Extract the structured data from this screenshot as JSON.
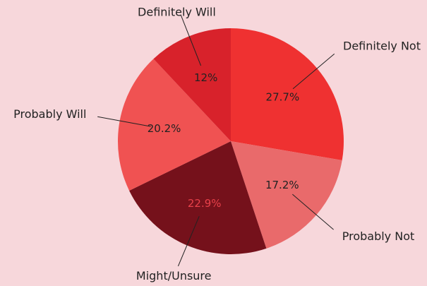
{
  "chart_data": {
    "type": "pie",
    "categories": [
      "Definitely Not",
      "Probably Not",
      "Might/Unsure",
      "Probably Will",
      "Definitely Will"
    ],
    "values": [
      27.7,
      17.2,
      22.9,
      20.2,
      12
    ],
    "value_labels": [
      "27.7%",
      "17.2%",
      "22.9%",
      "20.2%",
      "12%"
    ],
    "colors": [
      "#ef3131",
      "#e96a6b",
      "#75111b",
      "#f05252",
      "#d8222b"
    ],
    "value_label_colors": [
      "#222222",
      "#222222",
      "#e8414a",
      "#222222",
      "#222222"
    ]
  }
}
